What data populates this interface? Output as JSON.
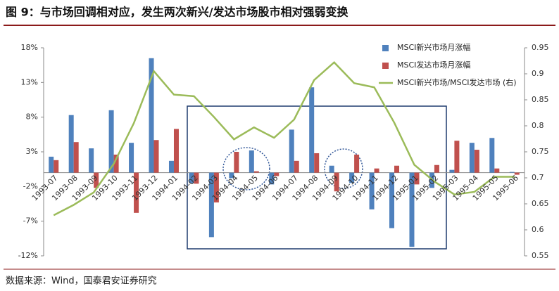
{
  "chart_data": {
    "type": "bar_line",
    "title": "图 9：与市场回调相对应，发生两次新兴/发达市场股市相对强弱变换",
    "source": "数据来源：Wind，国泰君安证券研究",
    "categories": [
      "1993-07",
      "1993-08",
      "1993-09",
      "1993-10",
      "1993-11",
      "1993-12",
      "1994-01",
      "1994-02",
      "1994-03",
      "1994-04",
      "1994-05",
      "1994-06",
      "1994-07",
      "1994-08",
      "1994-09",
      "1994-10",
      "1994-11",
      "1994-12",
      "1995-01",
      "1995-02",
      "1995-03",
      "1995-04",
      "1995-05",
      "1995-06"
    ],
    "series": [
      {
        "name": "MSCI新兴市场月涨幅",
        "color": "#4f81bd",
        "values": [
          2.3,
          8.3,
          3.5,
          9.0,
          4.3,
          16.5,
          1.7,
          -1.5,
          -9.3,
          -0.8,
          3.2,
          -1.7,
          6.2,
          12.3,
          1.0,
          -1.5,
          -5.3,
          -8.0,
          -10.7,
          -2.2,
          0.4,
          4.3,
          5.0,
          0.1
        ]
      },
      {
        "name": "MSCI发达市场月涨幅",
        "color": "#c0504d",
        "values": [
          1.8,
          4.4,
          -2.2,
          2.6,
          -5.8,
          4.7,
          6.3,
          -1.6,
          -4.3,
          3.0,
          0.2,
          -0.5,
          1.7,
          2.8,
          -2.7,
          2.6,
          0.6,
          1.0,
          -1.7,
          1.1,
          4.6,
          3.3,
          0.6,
          -0.3
        ]
      },
      {
        "name": "MSCI新兴市场/MSCI发达市场 (右)",
        "color": "#9bbb59",
        "axis": "y2",
        "values": [
          0.628,
          0.648,
          0.672,
          0.727,
          0.805,
          0.905,
          0.86,
          0.857,
          0.817,
          0.774,
          0.797,
          0.777,
          0.812,
          0.888,
          0.922,
          0.882,
          0.874,
          0.806,
          0.725,
          0.693,
          0.668,
          0.673,
          0.702,
          0.702
        ]
      }
    ],
    "ylim": [
      -12,
      18
    ],
    "yticks": [
      {
        "value": 18,
        "label": "18%"
      },
      {
        "value": 13,
        "label": "13%"
      },
      {
        "value": 8,
        "label": "8%"
      },
      {
        "value": 3,
        "label": "3%"
      },
      {
        "value": -2,
        "label": "-2%"
      },
      {
        "value": -7,
        "label": "-7%"
      },
      {
        "value": -12,
        "label": "-12%"
      }
    ],
    "y2lim": [
      0.55,
      0.95
    ],
    "y2ticks": [
      0.95,
      0.9,
      0.85,
      0.8,
      0.75,
      0.7,
      0.65,
      0.6,
      0.55
    ]
  }
}
